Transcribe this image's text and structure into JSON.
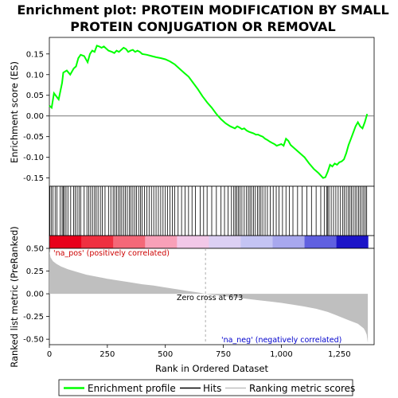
{
  "chart_data": {
    "type": "line",
    "title_line1": "Enrichment plot: PROTEIN MODIFICATION BY SMALL",
    "title_line2": "PROTEIN CONJUGATION OR REMOVAL",
    "x_axis_label": "Rank in Ordered Dataset",
    "es_axis_label": "Enrichment score (ES)",
    "metric_axis_label": "Ranked list metric (PreRanked)",
    "xlim": [
      0,
      1400
    ],
    "es_ylim": [
      -0.17,
      0.19
    ],
    "metric_ylim": [
      -0.56,
      0.5
    ],
    "x_ticks": [
      0,
      250,
      500,
      750,
      1000,
      1250
    ],
    "x_tick_labels": [
      "0",
      "250",
      "500",
      "750",
      "1,000",
      "1,250"
    ],
    "es_ticks": [
      -0.15,
      -0.1,
      -0.05,
      0.0,
      0.05,
      0.1,
      0.15
    ],
    "es_tick_labels": [
      "-0.15",
      "-0.10",
      "-0.05",
      "0.00",
      "0.05",
      "0.10",
      "0.15"
    ],
    "metric_ticks": [
      -0.5,
      -0.25,
      0.0,
      0.25,
      0.5
    ],
    "metric_tick_labels": [
      "-0.50",
      "-0.25",
      "0.00",
      "0.25",
      "0.50"
    ],
    "zero_cross_label": "Zero cross at 673",
    "zero_cross_rank": 673,
    "pos_label": "'na_pos' (positively correlated)",
    "neg_label": "'na_neg' (negatively correlated)",
    "total_ranks": 1375,
    "series": [
      {
        "name": "Enrichment profile",
        "color": "#00ff00",
        "x": [
          0,
          10,
          20,
          40,
          55,
          60,
          75,
          90,
          105,
          115,
          125,
          135,
          150,
          165,
          175,
          185,
          195,
          205,
          215,
          225,
          235,
          245,
          255,
          270,
          280,
          290,
          300,
          310,
          320,
          330,
          340,
          350,
          360,
          370,
          380,
          390,
          400,
          420,
          440,
          460,
          480,
          500,
          520,
          540,
          560,
          580,
          600,
          620,
          640,
          660,
          680,
          700,
          720,
          740,
          760,
          780,
          800,
          810,
          820,
          830,
          840,
          850,
          860,
          870,
          880,
          890,
          900,
          910,
          920,
          930,
          940,
          950,
          960,
          970,
          980,
          990,
          1000,
          1010,
          1020,
          1030,
          1040,
          1060,
          1080,
          1100,
          1120,
          1140,
          1160,
          1180,
          1190,
          1200,
          1210,
          1220,
          1230,
          1240,
          1250,
          1260,
          1270,
          1280,
          1290,
          1300,
          1310,
          1320,
          1330,
          1340,
          1350,
          1360,
          1370
        ],
        "y": [
          0.025,
          0.02,
          0.055,
          0.04,
          0.08,
          0.105,
          0.11,
          0.1,
          0.115,
          0.12,
          0.14,
          0.148,
          0.145,
          0.13,
          0.15,
          0.158,
          0.155,
          0.17,
          0.168,
          0.165,
          0.168,
          0.163,
          0.158,
          0.155,
          0.152,
          0.158,
          0.155,
          0.16,
          0.165,
          0.162,
          0.155,
          0.158,
          0.16,
          0.155,
          0.158,
          0.155,
          0.15,
          0.148,
          0.145,
          0.142,
          0.14,
          0.137,
          0.132,
          0.125,
          0.115,
          0.105,
          0.095,
          0.08,
          0.065,
          0.048,
          0.033,
          0.02,
          0.005,
          -0.008,
          -0.018,
          -0.025,
          -0.03,
          -0.025,
          -0.028,
          -0.032,
          -0.03,
          -0.035,
          -0.038,
          -0.04,
          -0.042,
          -0.045,
          -0.045,
          -0.048,
          -0.05,
          -0.055,
          -0.058,
          -0.062,
          -0.065,
          -0.068,
          -0.072,
          -0.07,
          -0.068,
          -0.072,
          -0.055,
          -0.06,
          -0.07,
          -0.08,
          -0.09,
          -0.1,
          -0.115,
          -0.128,
          -0.138,
          -0.15,
          -0.148,
          -0.135,
          -0.118,
          -0.122,
          -0.115,
          -0.118,
          -0.112,
          -0.11,
          -0.105,
          -0.09,
          -0.07,
          -0.055,
          -0.04,
          -0.025,
          -0.015,
          -0.025,
          -0.03,
          -0.015,
          0.005
        ]
      }
    ],
    "hit_ranks": [
      2,
      8,
      15,
      25,
      33,
      47,
      55,
      60,
      65,
      72,
      80,
      92,
      105,
      112,
      120,
      128,
      135,
      150,
      162,
      170,
      178,
      186,
      195,
      202,
      210,
      220,
      228,
      240,
      255,
      265,
      275,
      282,
      290,
      298,
      305,
      312,
      320,
      328,
      336,
      345,
      352,
      360,
      368,
      376,
      385,
      393,
      400,
      410,
      420,
      430,
      440,
      450,
      460,
      470,
      480,
      490,
      500,
      510,
      520,
      530,
      540,
      555,
      570,
      585,
      600,
      615,
      630,
      650,
      665,
      680,
      700,
      720,
      740,
      755,
      770,
      785,
      795,
      802,
      808,
      815,
      822,
      830,
      840,
      850,
      858,
      865,
      872,
      880,
      888,
      897,
      905,
      912,
      920,
      930,
      940,
      952,
      965,
      978,
      990,
      1005,
      1020,
      1035,
      1050,
      1070,
      1090,
      1110,
      1130,
      1150,
      1170,
      1185,
      1195,
      1200,
      1205,
      1215,
      1225,
      1235,
      1245,
      1255,
      1265,
      1272,
      1280,
      1288,
      1295,
      1302,
      1310,
      1318,
      1325,
      1333,
      1340,
      1348,
      1355,
      1362,
      1368
    ],
    "heat_colors": [
      "#e8001a",
      "#ef3040",
      "#f46878",
      "#f8a0b8",
      "#f2c8e8",
      "#dcd0f4",
      "#c4c4f4",
      "#a8a8ee",
      "#6060e0",
      "#1c14c8"
    ],
    "metric_profile": {
      "x": [
        0,
        5,
        15,
        30,
        50,
        80,
        120,
        160,
        200,
        250,
        300,
        350,
        400,
        450,
        500,
        550,
        600,
        640,
        673,
        700,
        750,
        800,
        850,
        900,
        950,
        1000,
        1050,
        1100,
        1150,
        1200,
        1230,
        1260,
        1290,
        1310,
        1330,
        1345,
        1355,
        1362,
        1368,
        1373
      ],
      "y": [
        0.47,
        0.4,
        0.36,
        0.33,
        0.3,
        0.27,
        0.24,
        0.21,
        0.19,
        0.165,
        0.145,
        0.125,
        0.105,
        0.09,
        0.07,
        0.05,
        0.03,
        0.015,
        0.0,
        -0.01,
        -0.025,
        -0.04,
        -0.055,
        -0.07,
        -0.085,
        -0.1,
        -0.12,
        -0.14,
        -0.165,
        -0.2,
        -0.23,
        -0.26,
        -0.29,
        -0.31,
        -0.33,
        -0.36,
        -0.38,
        -0.41,
        -0.45,
        -0.54
      ]
    },
    "legend": {
      "items": [
        {
          "label": "Enrichment profile",
          "color": "#00ff00"
        },
        {
          "label": "Hits",
          "color": "#000000"
        },
        {
          "label": "Ranking metric scores",
          "color": "#bfbfbf"
        }
      ]
    }
  }
}
